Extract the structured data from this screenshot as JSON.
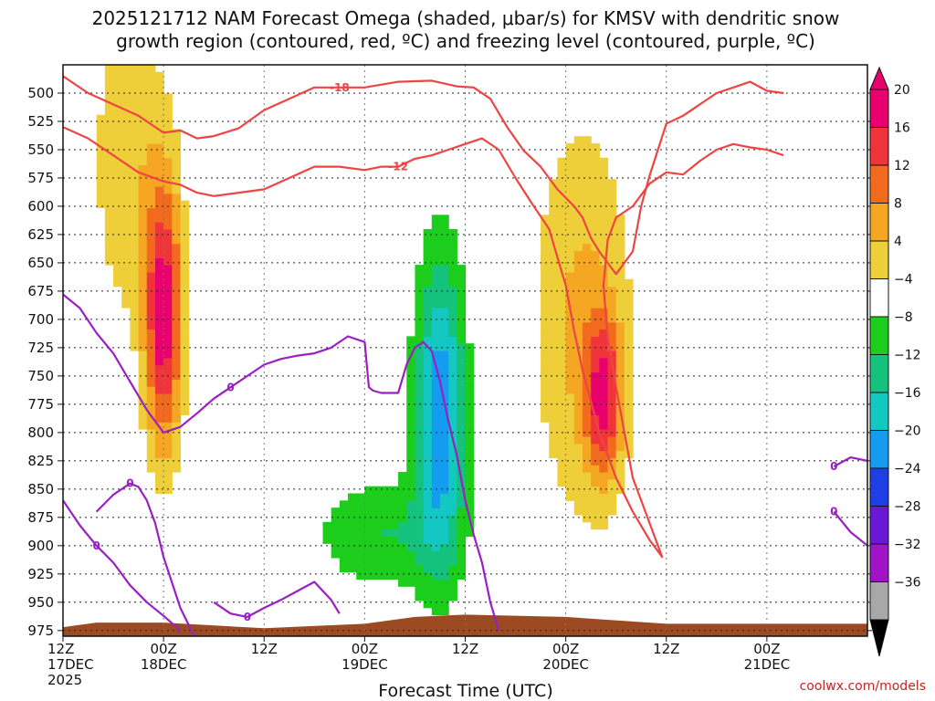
{
  "chart_data": {
    "type": "heatmap",
    "title_line1": "2025121712 NAM Forecast Omega (shaded, μbar/s) for KMSV with dendritic snow",
    "title_line2": "growth region (contoured, red, ºC) and freezing level (contoured, purple, ºC)",
    "xlabel": "Forecast Time (UTC)",
    "credit": "coolwx.com/models",
    "x_range_hours": [
      0,
      96
    ],
    "x_ticks": [
      {
        "hour": 0,
        "line1": "12Z",
        "line2": "17DEC",
        "line3": "2025"
      },
      {
        "hour": 12,
        "line1": "00Z",
        "line2": "18DEC",
        "line3": ""
      },
      {
        "hour": 24,
        "line1": "12Z",
        "line2": "",
        "line3": ""
      },
      {
        "hour": 36,
        "line1": "00Z",
        "line2": "19DEC",
        "line3": ""
      },
      {
        "hour": 48,
        "line1": "12Z",
        "line2": "",
        "line3": ""
      },
      {
        "hour": 60,
        "line1": "00Z",
        "line2": "20DEC",
        "line3": ""
      },
      {
        "hour": 72,
        "line1": "12Z",
        "line2": "",
        "line3": ""
      },
      {
        "hour": 84,
        "line1": "00Z",
        "line2": "21DEC",
        "line3": ""
      }
    ],
    "y_range_hpa": [
      980,
      475
    ],
    "y_ticks": [
      "500",
      "525",
      "550",
      "575",
      "600",
      "625",
      "650",
      "675",
      "700",
      "725",
      "750",
      "775",
      "800",
      "825",
      "850",
      "875",
      "900",
      "925",
      "950",
      "975"
    ],
    "colorbar": {
      "labels": [
        "20",
        "16",
        "12",
        "8",
        "4",
        "−4",
        "−8",
        "−12",
        "−16",
        "−20",
        "−24",
        "−28",
        "−32",
        "−36"
      ],
      "bins": [
        {
          "lo": 20,
          "hi": 24,
          "color": "#e8006e"
        },
        {
          "lo": 16,
          "hi": 20,
          "color": "#f0353a"
        },
        {
          "lo": 12,
          "hi": 16,
          "color": "#f26a1e"
        },
        {
          "lo": 8,
          "hi": 12,
          "color": "#f5a623"
        },
        {
          "lo": 4,
          "hi": 8,
          "color": "#eecf3a"
        },
        {
          "lo": -4,
          "hi": 4,
          "color": "#ffffff"
        },
        {
          "lo": -8,
          "hi": -4,
          "color": "#1ccd1c"
        },
        {
          "lo": -12,
          "hi": -8,
          "color": "#14c27d"
        },
        {
          "lo": -16,
          "hi": -12,
          "color": "#13c7c3"
        },
        {
          "lo": -20,
          "hi": -16,
          "color": "#139cf0"
        },
        {
          "lo": -24,
          "hi": -20,
          "color": "#1f3fe6"
        },
        {
          "lo": -28,
          "hi": -24,
          "color": "#6a17d6"
        },
        {
          "lo": -32,
          "hi": -28,
          "color": "#a013c6"
        },
        {
          "lo": -36,
          "hi": -32,
          "color": "#a8a8a8"
        }
      ]
    },
    "omega_cells": [
      {
        "label": "00Z 18DEC max upward (pink)",
        "peak": 22,
        "hour": 12,
        "p_hpa": 700,
        "sx_hours": 2.2,
        "sy_hpa": 120,
        "edge_c": 10
      },
      {
        "label": "pre-00Z 18DEC yellow band",
        "peak": 7,
        "hour": 8,
        "p_hpa": 560,
        "sx_hours": 5,
        "sy_hpa": 160,
        "edge_c": 5
      },
      {
        "label": "00Z 19DEC+8 green/blue descent",
        "peak": -19,
        "hour": 45,
        "p_hpa": 780,
        "sx_hours": 3,
        "sy_hpa": 140,
        "edge_c": -10
      },
      {
        "label": "lower green (descent)",
        "peak": -8,
        "hour": 38,
        "p_hpa": 890,
        "sx_hours": 8,
        "sy_hpa": 50,
        "edge_c": -5
      },
      {
        "label": "00Z 20DEC+4 upward cell",
        "peak": 17,
        "hour": 64.5,
        "p_hpa": 770,
        "sx_hours": 2.2,
        "sy_hpa": 70,
        "edge_c": 12
      },
      {
        "label": "00Z 20DEC broad yellow",
        "peak": 9,
        "hour": 62,
        "p_hpa": 700,
        "sx_hours": 6,
        "sy_hpa": 180,
        "edge_c": 6
      }
    ],
    "terrain_hpa": [
      {
        "hour": 0,
        "p": 972
      },
      {
        "hour": 4,
        "p": 968
      },
      {
        "hour": 12,
        "p": 968
      },
      {
        "hour": 24,
        "p": 973
      },
      {
        "hour": 36,
        "p": 969
      },
      {
        "hour": 42,
        "p": 963
      },
      {
        "hour": 48,
        "p": 961
      },
      {
        "hour": 60,
        "p": 963
      },
      {
        "hour": 72,
        "p": 969
      },
      {
        "hour": 84,
        "p": 969
      },
      {
        "hour": 96,
        "p": 969
      }
    ],
    "dgz_contours": [
      {
        "label": "-18",
        "points": [
          [
            0,
            485
          ],
          [
            3,
            500
          ],
          [
            6,
            510
          ],
          [
            9,
            520
          ],
          [
            12,
            535
          ],
          [
            14,
            533
          ],
          [
            16,
            540
          ],
          [
            18,
            538
          ],
          [
            21,
            531
          ],
          [
            24,
            515
          ],
          [
            27,
            505
          ],
          [
            30,
            495
          ],
          [
            33,
            495
          ],
          [
            36,
            495
          ],
          [
            40,
            490
          ],
          [
            44,
            489
          ],
          [
            47,
            494
          ],
          [
            49,
            495
          ],
          [
            51,
            505
          ],
          [
            53,
            530
          ],
          [
            55,
            551
          ],
          [
            57,
            565
          ],
          [
            59,
            585
          ],
          [
            61,
            600
          ],
          [
            62,
            610
          ],
          [
            63,
            628
          ],
          [
            64,
            640
          ],
          [
            66,
            660
          ],
          [
            68,
            640
          ],
          [
            69,
            600
          ],
          [
            70,
            573
          ],
          [
            71,
            550
          ],
          [
            72,
            527
          ],
          [
            74,
            520
          ],
          [
            76,
            510
          ],
          [
            78,
            500
          ],
          [
            80,
            495
          ],
          [
            82,
            490
          ],
          [
            84,
            498
          ],
          [
            86,
            500
          ]
        ]
      },
      {
        "label": "-12",
        "points": [
          [
            0,
            530
          ],
          [
            3,
            540
          ],
          [
            6,
            555
          ],
          [
            9,
            570
          ],
          [
            12,
            578
          ],
          [
            14,
            581
          ],
          [
            16,
            588
          ],
          [
            18,
            591
          ],
          [
            21,
            588
          ],
          [
            24,
            585
          ],
          [
            27,
            575
          ],
          [
            30,
            565
          ],
          [
            33,
            565
          ],
          [
            36,
            568
          ],
          [
            38,
            565
          ],
          [
            40,
            565
          ],
          [
            42,
            558
          ],
          [
            44,
            555
          ],
          [
            46,
            550
          ],
          [
            48,
            545
          ],
          [
            50,
            540
          ],
          [
            52,
            550
          ],
          [
            54,
            575
          ],
          [
            56,
            598
          ],
          [
            58,
            620
          ],
          [
            60,
            670
          ],
          [
            61,
            710
          ],
          [
            62,
            745
          ],
          [
            64,
            800
          ],
          [
            66,
            840
          ],
          [
            68,
            870
          ],
          [
            70,
            895
          ],
          [
            71.5,
            910
          ],
          [
            70,
            880
          ],
          [
            68,
            840
          ],
          [
            67,
            800
          ],
          [
            66,
            760
          ],
          [
            65,
            715
          ],
          [
            64.5,
            670
          ],
          [
            65,
            630
          ],
          [
            66,
            610
          ],
          [
            68,
            600
          ],
          [
            70,
            580
          ],
          [
            72,
            570
          ],
          [
            74,
            572
          ],
          [
            76,
            560
          ],
          [
            78,
            550
          ],
          [
            80,
            545
          ],
          [
            82,
            548
          ],
          [
            84,
            550
          ],
          [
            86,
            555
          ]
        ]
      }
    ],
    "freezing_level_contours": [
      {
        "label": "0",
        "points": [
          [
            0,
            678
          ],
          [
            2,
            690
          ],
          [
            4,
            712
          ],
          [
            6,
            730
          ],
          [
            8,
            755
          ],
          [
            10,
            780
          ],
          [
            12,
            800
          ],
          [
            14,
            795
          ],
          [
            16,
            783
          ],
          [
            18,
            770
          ],
          [
            20,
            760
          ],
          [
            22,
            750
          ],
          [
            24,
            740
          ],
          [
            26,
            735
          ],
          [
            28,
            732
          ],
          [
            30,
            730
          ],
          [
            32,
            725
          ],
          [
            34,
            715
          ],
          [
            36,
            720
          ],
          [
            36.5,
            760
          ],
          [
            37,
            763
          ],
          [
            38,
            765
          ],
          [
            40,
            765
          ],
          [
            41,
            740
          ],
          [
            42,
            725
          ],
          [
            43,
            720
          ],
          [
            44,
            728
          ],
          [
            45,
            755
          ],
          [
            46,
            790
          ],
          [
            47,
            820
          ],
          [
            48,
            860
          ],
          [
            49,
            890
          ],
          [
            50,
            915
          ],
          [
            51,
            950
          ],
          [
            52,
            975
          ]
        ]
      },
      {
        "label": "0",
        "points": [
          [
            0,
            860
          ],
          [
            2,
            882
          ],
          [
            4,
            900
          ],
          [
            6,
            915
          ],
          [
            8,
            935
          ],
          [
            10,
            950
          ],
          [
            12,
            962
          ],
          [
            14,
            975
          ]
        ]
      },
      {
        "label": "0",
        "points": [
          [
            4,
            870
          ],
          [
            6,
            855
          ],
          [
            8,
            845
          ],
          [
            9,
            848
          ],
          [
            10,
            860
          ],
          [
            11,
            880
          ],
          [
            12,
            910
          ],
          [
            14,
            955
          ],
          [
            16,
            985
          ]
        ]
      },
      {
        "label": "0",
        "points": [
          [
            18,
            950
          ],
          [
            20,
            960
          ],
          [
            22,
            963
          ],
          [
            24,
            955
          ],
          [
            26,
            948
          ],
          [
            28,
            940
          ],
          [
            30,
            932
          ],
          [
            32,
            948
          ],
          [
            33,
            960
          ]
        ]
      },
      {
        "label": "0",
        "points": [
          [
            92,
            830
          ],
          [
            94,
            822
          ],
          [
            96,
            825
          ]
        ]
      },
      {
        "label": "0",
        "points": [
          [
            92,
            870
          ],
          [
            94,
            888
          ],
          [
            96,
            900
          ]
        ]
      }
    ]
  }
}
